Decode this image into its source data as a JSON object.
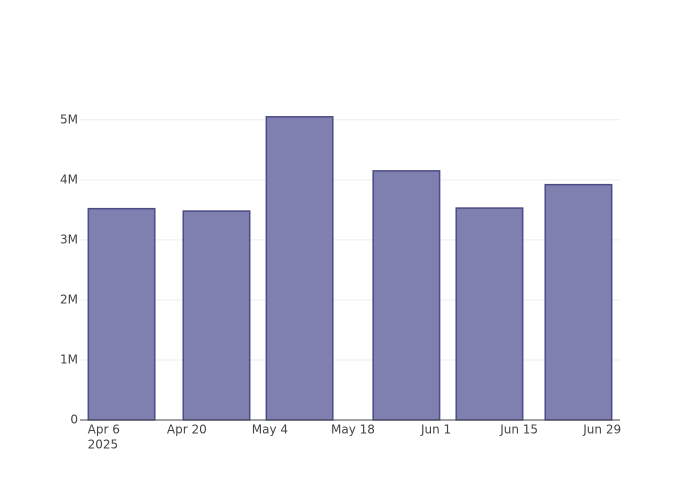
{
  "chart_data": {
    "type": "bar",
    "x": [
      "2025-04-09",
      "2025-04-25",
      "2025-05-09",
      "2025-05-27",
      "2025-06-10",
      "2025-06-25"
    ],
    "values": [
      3520000,
      3480000,
      5050000,
      4150000,
      3530000,
      3920000
    ],
    "color": "#7f7fb0",
    "line_color": "#4b4b85",
    "xlim": [
      "2025-04-02",
      "2025-07-02"
    ],
    "xticks": [
      {
        "value": "2025-04-06",
        "label": "Apr 6"
      },
      {
        "value": "2025-04-20",
        "label": "Apr 20"
      },
      {
        "value": "2025-05-04",
        "label": "May 4"
      },
      {
        "value": "2025-05-18",
        "label": "May 18"
      },
      {
        "value": "2025-06-01",
        "label": "Jun 1"
      },
      {
        "value": "2025-06-15",
        "label": "Jun 15"
      },
      {
        "value": "2025-06-29",
        "label": "Jun 29"
      }
    ],
    "xtick_year": "2025",
    "ylim": [
      0,
      5330000
    ],
    "yticks": [
      0,
      {
        "value": 1000000,
        "label": "1M"
      },
      {
        "value": 2000000,
        "label": "2M"
      },
      {
        "value": 3000000,
        "label": "3M"
      },
      {
        "value": 4000000,
        "label": "4M"
      },
      {
        "value": 5000000,
        "label": "5M"
      }
    ],
    "grid": true
  }
}
